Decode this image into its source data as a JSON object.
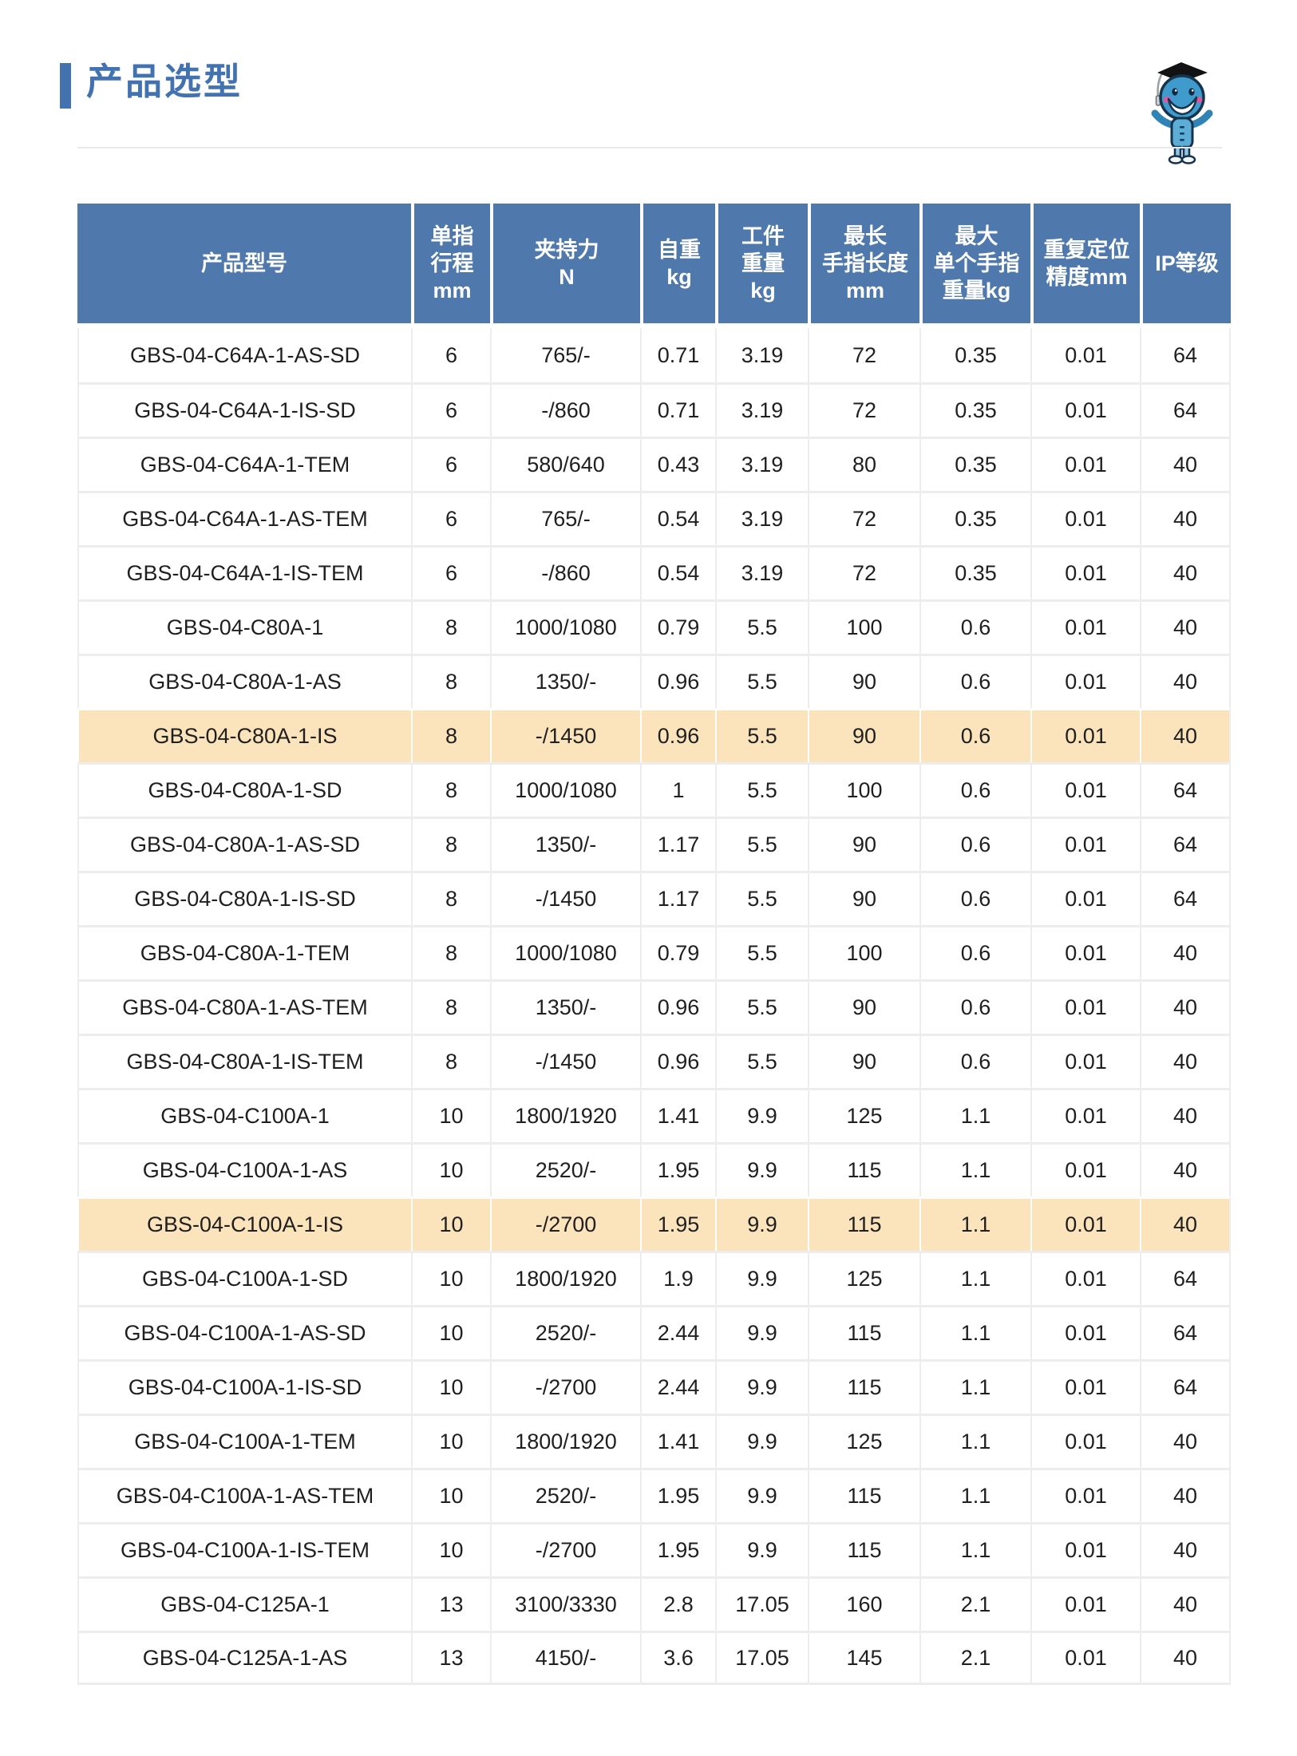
{
  "page": {
    "title": "产品选型"
  },
  "colors": {
    "accent_blue": "#4372b0",
    "header_blue": "#4f78ac",
    "row_highlight": "#fbe3bc",
    "gridline": "#ededed"
  },
  "icons": {
    "mascot": "graduate-mascot-icon"
  },
  "table": {
    "columns": [
      {
        "label": "产品型号"
      },
      {
        "label": "单指\n行程\nmm"
      },
      {
        "label": "夹持力\nN"
      },
      {
        "label": "自重\nkg"
      },
      {
        "label": "工件\n重量\nkg"
      },
      {
        "label": "最长\n手指长度\nmm"
      },
      {
        "label": "最大\n单个手指\n重量kg"
      },
      {
        "label": "重复定位\n精度mm"
      },
      {
        "label": "IP等级"
      }
    ],
    "rows": [
      {
        "highlight": false,
        "cells": [
          "GBS-04-C64A-1-AS-SD",
          "6",
          "765/-",
          "0.71",
          "3.19",
          "72",
          "0.35",
          "0.01",
          "64"
        ]
      },
      {
        "highlight": false,
        "cells": [
          "GBS-04-C64A-1-IS-SD",
          "6",
          "-/860",
          "0.71",
          "3.19",
          "72",
          "0.35",
          "0.01",
          "64"
        ]
      },
      {
        "highlight": false,
        "cells": [
          "GBS-04-C64A-1-TEM",
          "6",
          "580/640",
          "0.43",
          "3.19",
          "80",
          "0.35",
          "0.01",
          "40"
        ]
      },
      {
        "highlight": false,
        "cells": [
          "GBS-04-C64A-1-AS-TEM",
          "6",
          "765/-",
          "0.54",
          "3.19",
          "72",
          "0.35",
          "0.01",
          "40"
        ]
      },
      {
        "highlight": false,
        "cells": [
          "GBS-04-C64A-1-IS-TEM",
          "6",
          "-/860",
          "0.54",
          "3.19",
          "72",
          "0.35",
          "0.01",
          "40"
        ]
      },
      {
        "highlight": false,
        "cells": [
          "GBS-04-C80A-1",
          "8",
          "1000/1080",
          "0.79",
          "5.5",
          "100",
          "0.6",
          "0.01",
          "40"
        ]
      },
      {
        "highlight": false,
        "cells": [
          "GBS-04-C80A-1-AS",
          "8",
          "1350/-",
          "0.96",
          "5.5",
          "90",
          "0.6",
          "0.01",
          "40"
        ]
      },
      {
        "highlight": true,
        "cells": [
          "GBS-04-C80A-1-IS",
          "8",
          "-/1450",
          "0.96",
          "5.5",
          "90",
          "0.6",
          "0.01",
          "40"
        ]
      },
      {
        "highlight": false,
        "cells": [
          "GBS-04-C80A-1-SD",
          "8",
          "1000/1080",
          "1",
          "5.5",
          "100",
          "0.6",
          "0.01",
          "64"
        ]
      },
      {
        "highlight": false,
        "cells": [
          "GBS-04-C80A-1-AS-SD",
          "8",
          "1350/-",
          "1.17",
          "5.5",
          "90",
          "0.6",
          "0.01",
          "64"
        ]
      },
      {
        "highlight": false,
        "cells": [
          "GBS-04-C80A-1-IS-SD",
          "8",
          "-/1450",
          "1.17",
          "5.5",
          "90",
          "0.6",
          "0.01",
          "64"
        ]
      },
      {
        "highlight": false,
        "cells": [
          "GBS-04-C80A-1-TEM",
          "8",
          "1000/1080",
          "0.79",
          "5.5",
          "100",
          "0.6",
          "0.01",
          "40"
        ]
      },
      {
        "highlight": false,
        "cells": [
          "GBS-04-C80A-1-AS-TEM",
          "8",
          "1350/-",
          "0.96",
          "5.5",
          "90",
          "0.6",
          "0.01",
          "40"
        ]
      },
      {
        "highlight": false,
        "cells": [
          "GBS-04-C80A-1-IS-TEM",
          "8",
          "-/1450",
          "0.96",
          "5.5",
          "90",
          "0.6",
          "0.01",
          "40"
        ]
      },
      {
        "highlight": false,
        "cells": [
          "GBS-04-C100A-1",
          "10",
          "1800/1920",
          "1.41",
          "9.9",
          "125",
          "1.1",
          "0.01",
          "40"
        ]
      },
      {
        "highlight": false,
        "cells": [
          "GBS-04-C100A-1-AS",
          "10",
          "2520/-",
          "1.95",
          "9.9",
          "115",
          "1.1",
          "0.01",
          "40"
        ]
      },
      {
        "highlight": true,
        "cells": [
          "GBS-04-C100A-1-IS",
          "10",
          "-/2700",
          "1.95",
          "9.9",
          "115",
          "1.1",
          "0.01",
          "40"
        ]
      },
      {
        "highlight": false,
        "cells": [
          "GBS-04-C100A-1-SD",
          "10",
          "1800/1920",
          "1.9",
          "9.9",
          "125",
          "1.1",
          "0.01",
          "64"
        ]
      },
      {
        "highlight": false,
        "cells": [
          "GBS-04-C100A-1-AS-SD",
          "10",
          "2520/-",
          "2.44",
          "9.9",
          "115",
          "1.1",
          "0.01",
          "64"
        ]
      },
      {
        "highlight": false,
        "cells": [
          "GBS-04-C100A-1-IS-SD",
          "10",
          "-/2700",
          "2.44",
          "9.9",
          "115",
          "1.1",
          "0.01",
          "64"
        ]
      },
      {
        "highlight": false,
        "cells": [
          "GBS-04-C100A-1-TEM",
          "10",
          "1800/1920",
          "1.41",
          "9.9",
          "125",
          "1.1",
          "0.01",
          "40"
        ]
      },
      {
        "highlight": false,
        "cells": [
          "GBS-04-C100A-1-AS-TEM",
          "10",
          "2520/-",
          "1.95",
          "9.9",
          "115",
          "1.1",
          "0.01",
          "40"
        ]
      },
      {
        "highlight": false,
        "cells": [
          "GBS-04-C100A-1-IS-TEM",
          "10",
          "-/2700",
          "1.95",
          "9.9",
          "115",
          "1.1",
          "0.01",
          "40"
        ]
      },
      {
        "highlight": false,
        "cells": [
          "GBS-04-C125A-1",
          "13",
          "3100/3330",
          "2.8",
          "17.05",
          "160",
          "2.1",
          "0.01",
          "40"
        ]
      },
      {
        "highlight": false,
        "cells": [
          "GBS-04-C125A-1-AS",
          "13",
          "4150/-",
          "3.6",
          "17.05",
          "145",
          "2.1",
          "0.01",
          "40"
        ]
      }
    ]
  }
}
